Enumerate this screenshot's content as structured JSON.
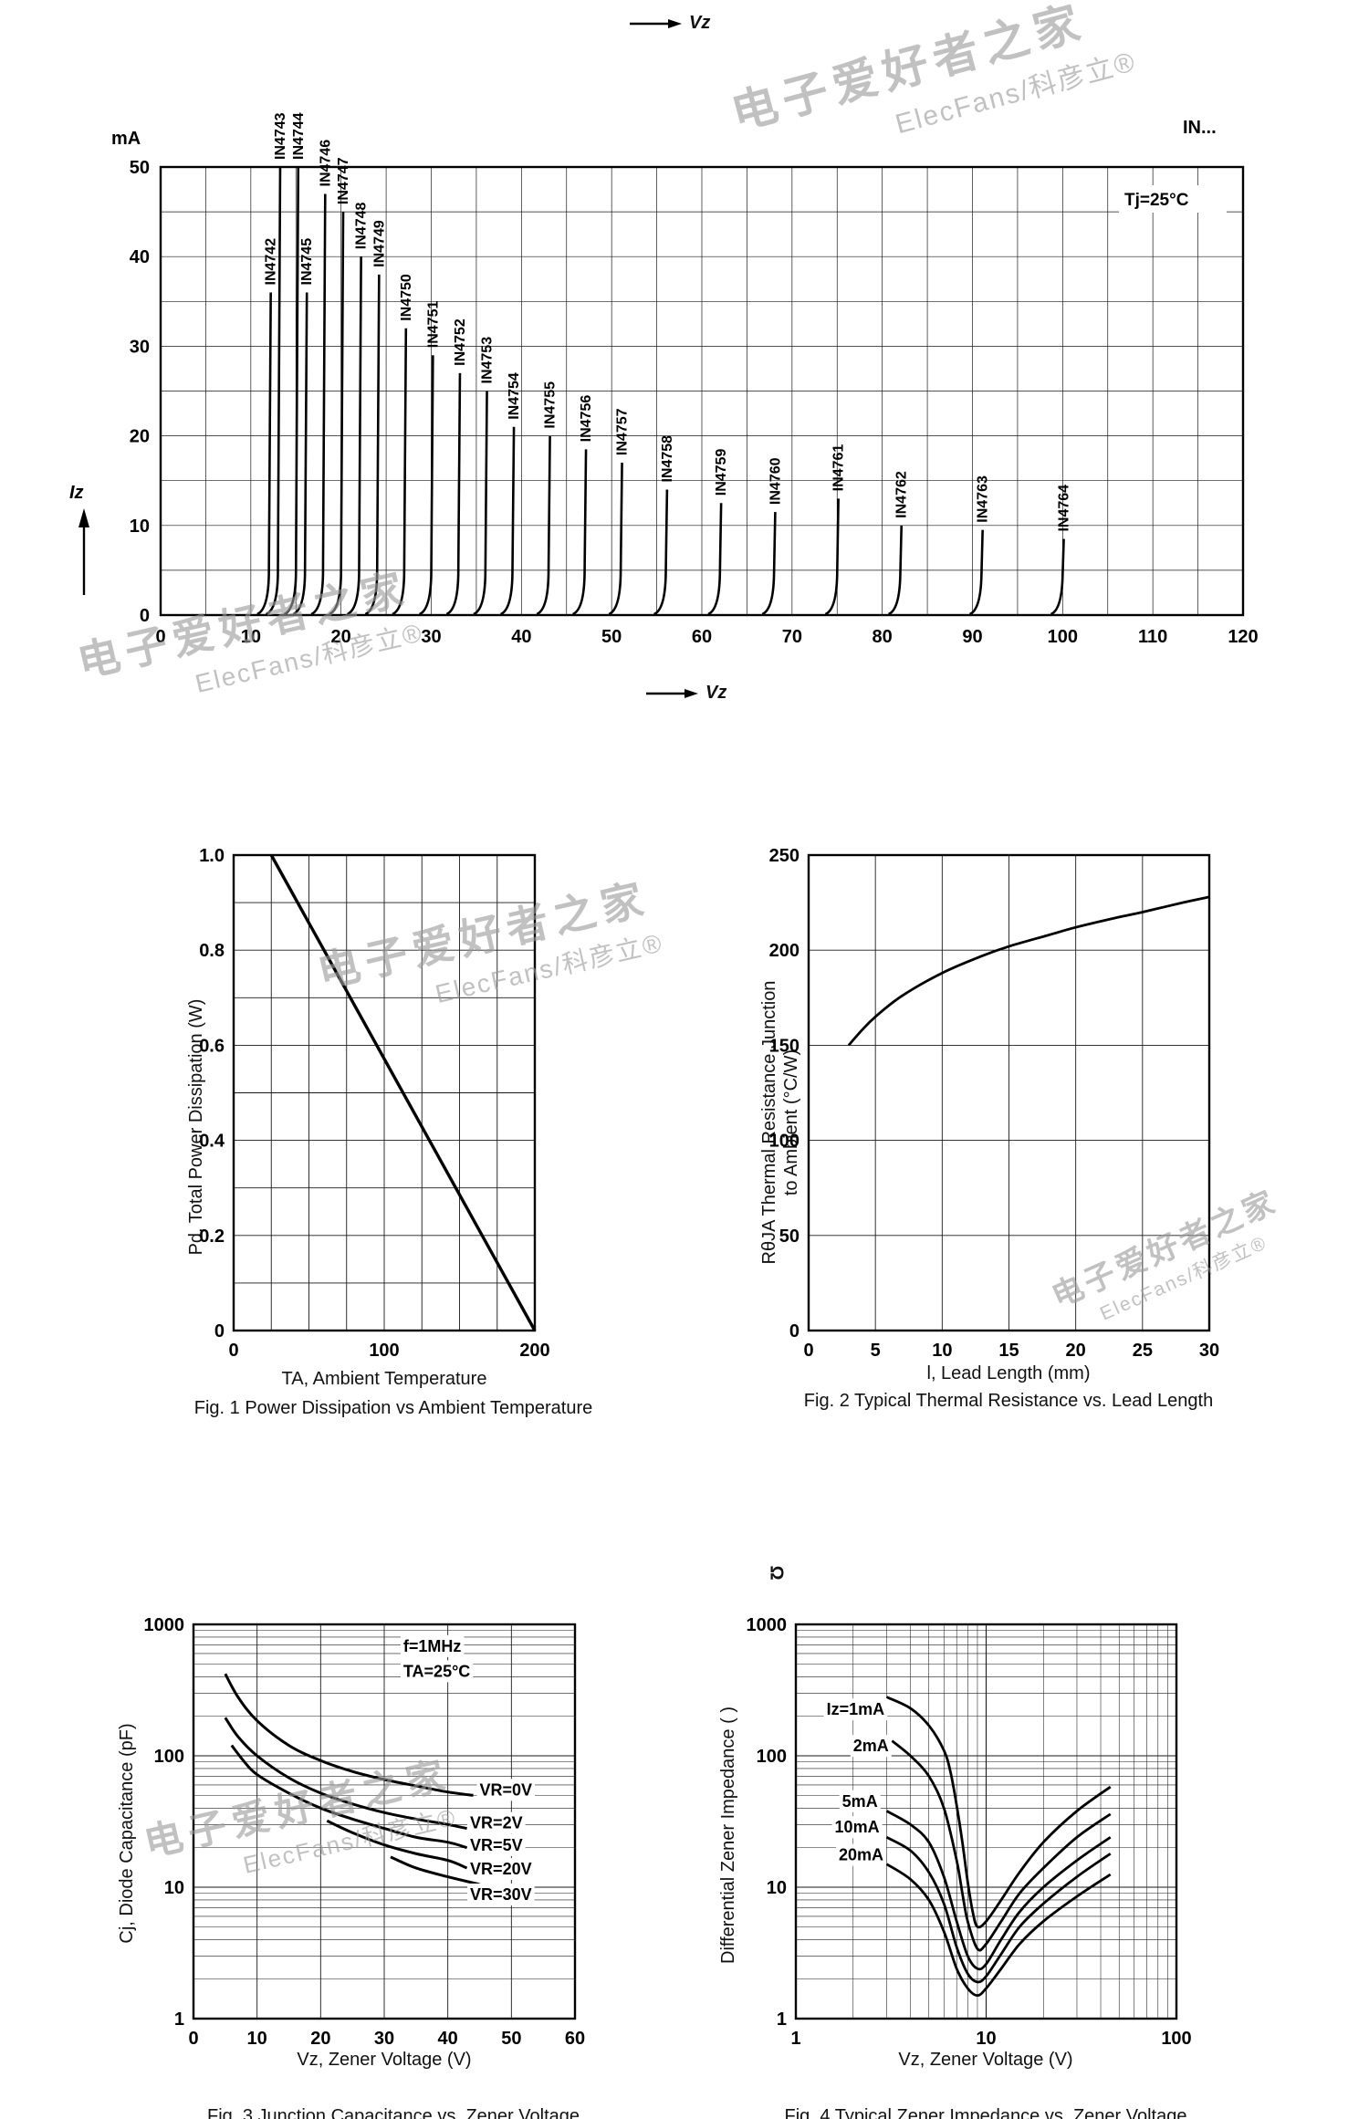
{
  "watermark": {
    "line1": "电子爱好者之家",
    "line2": "ElecFans/科彦立®"
  },
  "chart_data": [
    {
      "id": "zener-iv",
      "type": "line",
      "xlabel": "Vz",
      "ylabel": "Iz",
      "unit": "mA",
      "condition": "Tj=25°C",
      "corner_label": "IN...",
      "xlim": [
        0,
        120
      ],
      "ylim": [
        0,
        50
      ],
      "x_ticks": [
        0,
        10,
        20,
        30,
        40,
        50,
        60,
        70,
        80,
        90,
        100,
        110,
        120
      ],
      "y_ticks": [
        0,
        10,
        20,
        30,
        40,
        50
      ],
      "grid_step": 5,
      "series": [
        {
          "name": "IN4742",
          "vz": 12,
          "i_top": 36
        },
        {
          "name": "IN4743",
          "vz": 13,
          "i_top": 50
        },
        {
          "name": "IN4744",
          "vz": 15,
          "i_top": 50
        },
        {
          "name": "IN4745",
          "vz": 16,
          "i_top": 36
        },
        {
          "name": "IN4746",
          "vz": 18,
          "i_top": 47
        },
        {
          "name": "IN4747",
          "vz": 20,
          "i_top": 45
        },
        {
          "name": "IN4748",
          "vz": 22,
          "i_top": 40
        },
        {
          "name": "IN4749",
          "vz": 24,
          "i_top": 38
        },
        {
          "name": "IN4750",
          "vz": 27,
          "i_top": 32
        },
        {
          "name": "IN4751",
          "vz": 30,
          "i_top": 29
        },
        {
          "name": "IN4752",
          "vz": 33,
          "i_top": 27
        },
        {
          "name": "IN4753",
          "vz": 36,
          "i_top": 25
        },
        {
          "name": "IN4754",
          "vz": 39,
          "i_top": 21
        },
        {
          "name": "IN4755",
          "vz": 43,
          "i_top": 20
        },
        {
          "name": "IN4756",
          "vz": 47,
          "i_top": 18.5
        },
        {
          "name": "IN4757",
          "vz": 51,
          "i_top": 17
        },
        {
          "name": "IN4758",
          "vz": 56,
          "i_top": 14
        },
        {
          "name": "IN4759",
          "vz": 62,
          "i_top": 12.5
        },
        {
          "name": "IN4760",
          "vz": 68,
          "i_top": 11.5
        },
        {
          "name": "IN4761",
          "vz": 75,
          "i_top": 13
        },
        {
          "name": "IN4762",
          "vz": 82,
          "i_top": 10
        },
        {
          "name": "IN4763",
          "vz": 91,
          "i_top": 9.5
        },
        {
          "name": "IN4764",
          "vz": 100,
          "i_top": 8.5
        }
      ]
    },
    {
      "id": "power-derating",
      "type": "line",
      "caption": "Fig. 1 Power Dissipation vs Ambient Temperature",
      "xlabel": "TA, Ambient Temperature",
      "ylabel": "Pd. Total Power Dissipation (W)",
      "xlim": [
        0,
        200
      ],
      "ylim": [
        0,
        1.0
      ],
      "grid_x": 25,
      "grid_y": 0.1,
      "x_ticks": [
        [
          0,
          "0"
        ],
        [
          100,
          "100"
        ],
        [
          200,
          "200"
        ]
      ],
      "y_ticks": [
        [
          0,
          "0"
        ],
        [
          0.2,
          "0.2"
        ],
        [
          0.4,
          "0.4"
        ],
        [
          0.6,
          "0.6"
        ],
        [
          0.8,
          "0.8"
        ],
        [
          1.0,
          "1.0"
        ]
      ],
      "series": [
        {
          "name": "derating-line",
          "points": [
            [
              25,
              1.0
            ],
            [
              200,
              0
            ]
          ]
        }
      ]
    },
    {
      "id": "thermal-resistance",
      "type": "line",
      "caption": "Fig. 2 Typical Thermal Resistance vs. Lead Length",
      "xlabel": "l, Lead Length (mm)",
      "ylabel": "RθJA Thermal Resistance Junction to Ambient (°C/W)",
      "ylabel_lines": [
        "RθJA Thermal Resistance Junction",
        "to Ambient (°C/W)"
      ],
      "xlim": [
        0,
        30
      ],
      "ylim": [
        0,
        250
      ],
      "grid_x": 5,
      "grid_y": 50,
      "x_ticks": [
        0,
        5,
        10,
        15,
        20,
        25,
        30
      ],
      "y_ticks": [
        0,
        50,
        100,
        150,
        200,
        250
      ],
      "series": [
        {
          "name": "RθJA",
          "points": [
            [
              3,
              150
            ],
            [
              4,
              158
            ],
            [
              5,
              165
            ],
            [
              7,
              176
            ],
            [
              10,
              188
            ],
            [
              13,
              197
            ],
            [
              15,
              202
            ],
            [
              18,
              208
            ],
            [
              20,
              212
            ],
            [
              23,
              217
            ],
            [
              25,
              220
            ],
            [
              28,
              225
            ],
            [
              30,
              228
            ]
          ]
        }
      ]
    },
    {
      "id": "junction-capacitance",
      "type": "line",
      "caption": "Fig. 3 Junction Capacitance vs. Zener Voltage",
      "xlabel": "Vz, Zener Voltage (V)",
      "ylabel": "Cj, Diode Capacitance (pF)",
      "x_scale": "linear",
      "y_scale": "log",
      "xlim": [
        0,
        60
      ],
      "ylim": [
        1,
        1000
      ],
      "x_ticks": [
        0,
        10,
        20,
        30,
        40,
        50,
        60
      ],
      "y_ticks": [
        "1",
        "10",
        "100",
        "1000"
      ],
      "annotations": [
        {
          "text": "f=1MHz",
          "x": 33,
          "y": 620
        },
        {
          "text": "TA=25°C",
          "x": 33,
          "y": 400
        }
      ],
      "series": [
        {
          "name": "VR=0V",
          "label_at": [
            45,
            50
          ],
          "points": [
            [
              5,
              420
            ],
            [
              7,
              280
            ],
            [
              10,
              185
            ],
            [
              15,
              120
            ],
            [
              20,
              92
            ],
            [
              25,
              76
            ],
            [
              30,
              66
            ],
            [
              35,
              59
            ],
            [
              40,
              53
            ],
            [
              44,
              50
            ]
          ]
        },
        {
          "name": "VR=2V",
          "label_at": [
            43.5,
            28
          ],
          "points": [
            [
              5,
              195
            ],
            [
              7,
              140
            ],
            [
              10,
              100
            ],
            [
              15,
              68
            ],
            [
              20,
              52
            ],
            [
              25,
              43
            ],
            [
              30,
              37
            ],
            [
              35,
              33
            ],
            [
              40,
              30
            ],
            [
              43,
              28
            ]
          ]
        },
        {
          "name": "VR=5V",
          "label_at": [
            43.5,
            19
          ],
          "points": [
            [
              6,
              120
            ],
            [
              8,
              90
            ],
            [
              10,
              72
            ],
            [
              15,
              52
            ],
            [
              20,
              40
            ],
            [
              25,
              33
            ],
            [
              30,
              28
            ],
            [
              35,
              24
            ],
            [
              40,
              22
            ],
            [
              43,
              20
            ]
          ]
        },
        {
          "name": "VR=20V",
          "label_at": [
            43.5,
            12.5
          ],
          "points": [
            [
              21,
              32
            ],
            [
              25,
              26
            ],
            [
              30,
              21
            ],
            [
              35,
              18
            ],
            [
              40,
              16
            ],
            [
              43,
              14
            ]
          ]
        },
        {
          "name": "VR=30V",
          "label_at": [
            43.5,
            8
          ],
          "points": [
            [
              31,
              17
            ],
            [
              35,
              14
            ],
            [
              40,
              12
            ],
            [
              45,
              10.5
            ]
          ]
        }
      ]
    },
    {
      "id": "zener-impedance",
      "type": "line",
      "caption": "Fig. 4 Typical Zener Impedance vs. Zener Voltage",
      "xlabel": "Vz, Zener Voltage (V)",
      "ylabel": "Differential Zener Impedance ( )",
      "ylabel_unit": "Ω",
      "x_scale": "log",
      "y_scale": "log",
      "xlim": [
        1,
        100
      ],
      "ylim": [
        1,
        1000
      ],
      "x_ticks": [
        "1",
        "10",
        "100"
      ],
      "y_ticks": [
        "1",
        "10",
        "100",
        "1000"
      ],
      "series": [
        {
          "name": "Iz=1mA",
          "label_at": [
            1.45,
            205
          ],
          "points": [
            [
              3,
              280
            ],
            [
              4,
              230
            ],
            [
              5,
              170
            ],
            [
              6,
              110
            ],
            [
              6.5,
              75
            ],
            [
              7,
              42
            ],
            [
              7.5,
              22
            ],
            [
              8,
              11
            ],
            [
              8.5,
              6.5
            ],
            [
              9,
              5
            ],
            [
              10,
              5.5
            ],
            [
              12,
              8
            ],
            [
              15,
              13
            ],
            [
              20,
              22
            ],
            [
              30,
              38
            ],
            [
              45,
              58
            ]
          ]
        },
        {
          "name": "2mA",
          "label_at": [
            2.0,
            108
          ],
          "points": [
            [
              3.2,
              130
            ],
            [
              4,
              100
            ],
            [
              5,
              70
            ],
            [
              6,
              40
            ],
            [
              7,
              16
            ],
            [
              7.5,
              9
            ],
            [
              8,
              5.5
            ],
            [
              9,
              3.4
            ],
            [
              10,
              3.7
            ],
            [
              12,
              5.5
            ],
            [
              15,
              9
            ],
            [
              20,
              14
            ],
            [
              30,
              24
            ],
            [
              45,
              36
            ]
          ]
        },
        {
          "name": "5mA",
          "label_at": [
            1.75,
            41
          ],
          "points": [
            [
              3,
              38
            ],
            [
              4,
              30
            ],
            [
              5,
              22
            ],
            [
              6,
              12
            ],
            [
              7,
              5.5
            ],
            [
              8,
              3
            ],
            [
              9,
              2.4
            ],
            [
              10,
              2.6
            ],
            [
              12,
              4
            ],
            [
              15,
              6.5
            ],
            [
              20,
              10
            ],
            [
              30,
              16
            ],
            [
              45,
              24
            ]
          ]
        },
        {
          "name": "10mA",
          "label_at": [
            1.6,
            26
          ],
          "points": [
            [
              3,
              24
            ],
            [
              4,
              19
            ],
            [
              5,
              13
            ],
            [
              6,
              7.5
            ],
            [
              7,
              3.5
            ],
            [
              8,
              2.2
            ],
            [
              9,
              1.9
            ],
            [
              10,
              2.1
            ],
            [
              12,
              3.1
            ],
            [
              15,
              5
            ],
            [
              20,
              7.5
            ],
            [
              30,
              12
            ],
            [
              45,
              18
            ]
          ]
        },
        {
          "name": "20mA",
          "label_at": [
            1.68,
            16
          ],
          "points": [
            [
              3,
              15
            ],
            [
              4,
              11.5
            ],
            [
              5,
              8
            ],
            [
              6,
              4.6
            ],
            [
              7,
              2.4
            ],
            [
              8,
              1.7
            ],
            [
              9,
              1.5
            ],
            [
              10,
              1.7
            ],
            [
              12,
              2.4
            ],
            [
              15,
              3.7
            ],
            [
              20,
              5.5
            ],
            [
              30,
              8.5
            ],
            [
              45,
              12.5
            ]
          ]
        }
      ]
    }
  ]
}
